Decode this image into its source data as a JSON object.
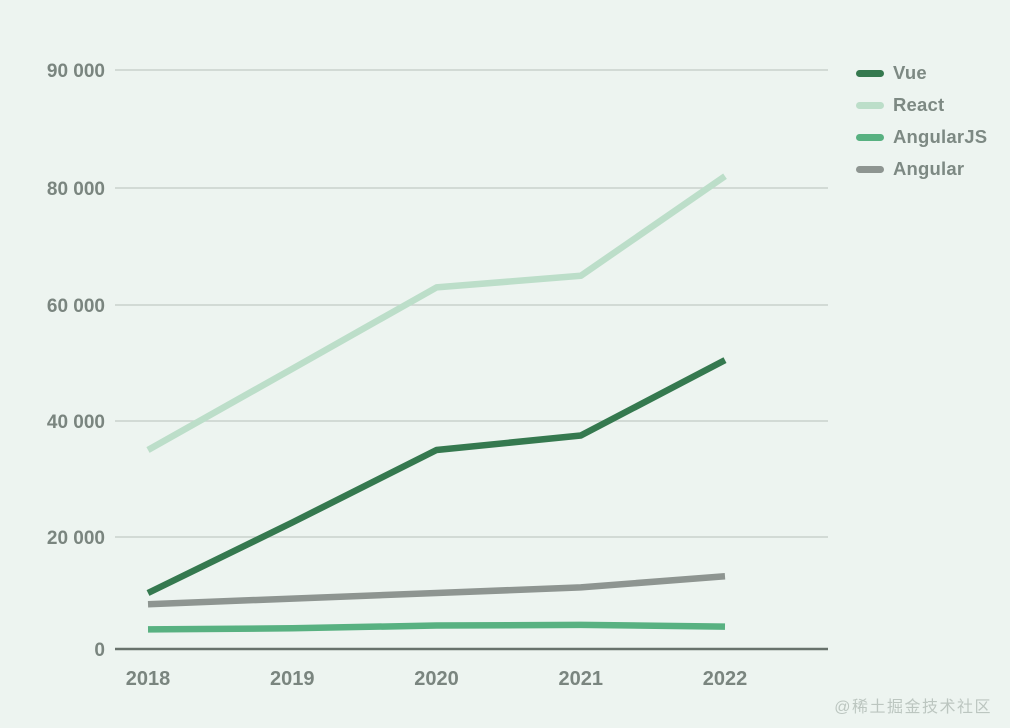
{
  "page": {
    "background_color": "#edf4f0",
    "gridline_color": "#c9d2cc",
    "zero_axis_color": "#68726c",
    "axis_text_color": "#7a857f"
  },
  "legend": {
    "items": [
      {
        "label": "Vue",
        "color": "#35794f"
      },
      {
        "label": "React",
        "color": "#bcdec9"
      },
      {
        "label": "AngularJS",
        "color": "#58b181"
      },
      {
        "label": "Angular",
        "color": "#8e9591"
      }
    ]
  },
  "watermark": {
    "text": "@稀土掘金技术社区"
  },
  "chart_data": {
    "type": "line",
    "title": "",
    "xlabel": "",
    "ylabel": "",
    "x": [
      2018,
      2019,
      2020,
      2021,
      2022
    ],
    "x_tick_labels": [
      "2018",
      "2019",
      "2020",
      "2021",
      "2022"
    ],
    "y_tick_values": [
      0,
      20000,
      40000,
      60000,
      80000,
      90000
    ],
    "y_tick_labels": [
      "0",
      "20 000",
      "40 000",
      "60 000",
      "80 000",
      "90 000"
    ],
    "ylim": [
      0,
      90000
    ],
    "grid": true,
    "legend_position": "top-right",
    "series": [
      {
        "name": "Vue",
        "color": "#35794f",
        "values": [
          10000,
          22500,
          35000,
          37500,
          50500
        ]
      },
      {
        "name": "React",
        "color": "#bcdec9",
        "values": [
          35000,
          49000,
          63000,
          65000,
          81000
        ]
      },
      {
        "name": "AngularJS",
        "color": "#58b181",
        "values": [
          3500,
          3700,
          4200,
          4300,
          4000
        ]
      },
      {
        "name": "Angular",
        "color": "#8e9591",
        "values": [
          8000,
          9000,
          10000,
          11000,
          13000
        ]
      }
    ]
  }
}
